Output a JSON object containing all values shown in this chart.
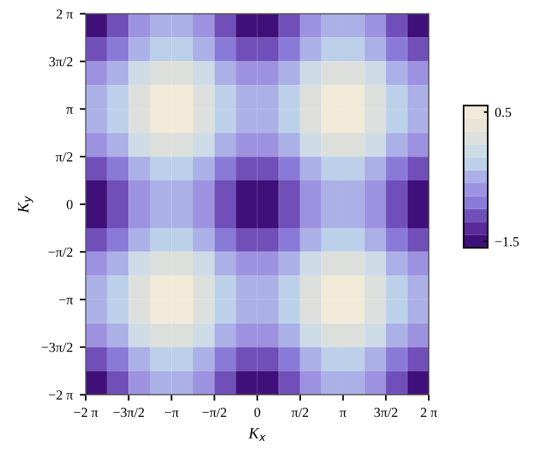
{
  "chart_data": {
    "type": "heatmap",
    "xlabel": "K$_{x}$",
    "ylabel": "K$_{y}$",
    "x": [
      -5.89,
      -5.105,
      -4.32,
      -3.534,
      -2.749,
      -1.963,
      -1.178,
      -0.393,
      0.393,
      1.178,
      1.963,
      2.749,
      3.534,
      4.32,
      5.105,
      5.89
    ],
    "y": [
      5.89,
      5.105,
      4.32,
      3.534,
      2.749,
      1.963,
      1.178,
      0.393,
      -0.393,
      -1.178,
      -1.963,
      -2.749,
      -3.534,
      -4.32,
      -5.105,
      -5.89
    ],
    "xlim": [
      -6.283,
      6.283
    ],
    "ylim": [
      -6.283,
      6.283
    ],
    "xticks": [
      {
        "value": -6.283,
        "label": "−2 π"
      },
      {
        "value": -4.712,
        "label": "−3π/2"
      },
      {
        "value": -3.142,
        "label": "−π"
      },
      {
        "value": -1.571,
        "label": "−π/2"
      },
      0,
      {
        "value": 1.571,
        "label": "π/2"
      },
      {
        "value": 3.142,
        "label": "π"
      },
      {
        "value": 4.712,
        "label": "3π/2"
      },
      {
        "value": 6.283,
        "label": "2 π"
      }
    ],
    "yticks": [
      {
        "value": -6.283,
        "label": "−2 π"
      },
      {
        "value": -4.712,
        "label": "−3π/2"
      },
      {
        "value": -3.142,
        "label": "−π"
      },
      {
        "value": -1.571,
        "label": "−π/2"
      },
      0,
      {
        "value": 1.571,
        "label": "π/2"
      },
      {
        "value": 3.142,
        "label": "π"
      },
      {
        "value": 4.712,
        "label": "3π/2"
      },
      {
        "value": 6.283,
        "label": "2 π"
      }
    ],
    "clim": [
      -1.6,
      0.6
    ],
    "cticks": [
      {
        "value": -1.5,
        "label": "−1.5"
      },
      0.5
    ],
    "colors": [
      "#40107a",
      "#5a2a9a",
      "#7050b8",
      "#8a7ad8",
      "#9d92e0",
      "#abb0e6",
      "#bdd0ea",
      "#cddbe6",
      "#dcdfdc",
      "#e9e4d8",
      "#f2ead8"
    ],
    "cells": [
      [
        -1.42,
        -1.15,
        -0.77,
        -0.5,
        -0.5,
        -0.77,
        -1.15,
        -1.42,
        -1.42,
        -1.15,
        -0.77,
        -0.5,
        -0.5,
        -0.77,
        -1.15,
        -1.42
      ],
      [
        -1.15,
        -0.88,
        -0.5,
        -0.23,
        -0.23,
        -0.5,
        -0.88,
        -1.15,
        -1.15,
        -0.88,
        -0.5,
        -0.23,
        -0.23,
        -0.5,
        -0.88,
        -1.15
      ],
      [
        -0.77,
        -0.5,
        -0.12,
        0.15,
        0.15,
        -0.12,
        -0.5,
        -0.77,
        -0.77,
        -0.5,
        -0.12,
        0.15,
        0.15,
        -0.12,
        -0.5,
        -0.77
      ],
      [
        -0.5,
        -0.23,
        0.15,
        0.42,
        0.42,
        0.15,
        -0.23,
        -0.5,
        -0.5,
        -0.23,
        0.15,
        0.42,
        0.42,
        0.15,
        -0.23,
        -0.5
      ],
      [
        -0.5,
        -0.23,
        0.15,
        0.42,
        0.42,
        0.15,
        -0.23,
        -0.5,
        -0.5,
        -0.23,
        0.15,
        0.42,
        0.42,
        0.15,
        -0.23,
        -0.5
      ],
      [
        -0.77,
        -0.5,
        -0.12,
        0.15,
        0.15,
        -0.12,
        -0.5,
        -0.77,
        -0.77,
        -0.5,
        -0.12,
        0.15,
        0.15,
        -0.12,
        -0.5,
        -0.77
      ],
      [
        -1.15,
        -0.88,
        -0.5,
        -0.23,
        -0.23,
        -0.5,
        -0.88,
        -1.15,
        -1.15,
        -0.88,
        -0.5,
        -0.23,
        -0.23,
        -0.5,
        -0.88,
        -1.15
      ],
      [
        -1.42,
        -1.15,
        -0.77,
        -0.5,
        -0.5,
        -0.77,
        -1.15,
        -1.42,
        -1.42,
        -1.15,
        -0.77,
        -0.5,
        -0.5,
        -0.77,
        -1.15,
        -1.42
      ],
      [
        -1.42,
        -1.15,
        -0.77,
        -0.5,
        -0.5,
        -0.77,
        -1.15,
        -1.42,
        -1.42,
        -1.15,
        -0.77,
        -0.5,
        -0.5,
        -0.77,
        -1.15,
        -1.42
      ],
      [
        -1.15,
        -0.88,
        -0.5,
        -0.23,
        -0.23,
        -0.5,
        -0.88,
        -1.15,
        -1.15,
        -0.88,
        -0.5,
        -0.23,
        -0.23,
        -0.5,
        -0.88,
        -1.15
      ],
      [
        -0.77,
        -0.5,
        -0.12,
        0.15,
        0.15,
        -0.12,
        -0.5,
        -0.77,
        -0.77,
        -0.5,
        -0.12,
        0.15,
        0.15,
        -0.12,
        -0.5,
        -0.77
      ],
      [
        -0.5,
        -0.23,
        0.15,
        0.42,
        0.42,
        0.15,
        -0.23,
        -0.5,
        -0.5,
        -0.23,
        0.15,
        0.42,
        0.42,
        0.15,
        -0.23,
        -0.5
      ],
      [
        -0.5,
        -0.23,
        0.15,
        0.42,
        0.42,
        0.15,
        -0.23,
        -0.5,
        -0.5,
        -0.23,
        0.15,
        0.42,
        0.42,
        0.15,
        -0.23,
        -0.5
      ],
      [
        -0.77,
        -0.5,
        -0.12,
        0.15,
        0.15,
        -0.12,
        -0.5,
        -0.77,
        -0.77,
        -0.5,
        -0.12,
        0.15,
        0.15,
        -0.12,
        -0.5,
        -0.77
      ],
      [
        -1.15,
        -0.88,
        -0.5,
        -0.23,
        -0.23,
        -0.5,
        -0.88,
        -1.15,
        -1.15,
        -0.88,
        -0.5,
        -0.23,
        -0.23,
        -0.5,
        -0.88,
        -1.15
      ],
      [
        -1.42,
        -1.15,
        -0.77,
        -0.5,
        -0.5,
        -0.77,
        -1.15,
        -1.42,
        -1.42,
        -1.15,
        -0.77,
        -0.5,
        -0.5,
        -0.77,
        -1.15,
        -1.42
      ]
    ]
  }
}
